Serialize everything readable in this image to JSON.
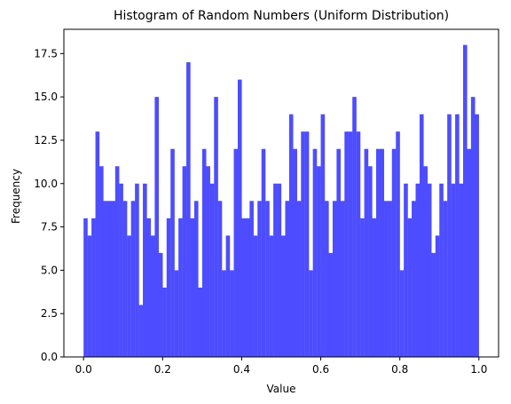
{
  "chart_data": {
    "type": "bar",
    "title": "Histogram of Random Numbers (Uniform Distribution)",
    "xlabel": "Value",
    "ylabel": "Frequency",
    "xlim": [
      -0.0498,
      1.0498
    ],
    "ylim": [
      0,
      18.9
    ],
    "xticks": [
      0.0,
      0.2,
      0.4,
      0.6,
      0.8,
      1.0
    ],
    "xtick_labels": [
      "0.0",
      "0.2",
      "0.4",
      "0.6",
      "0.8",
      "1.0"
    ],
    "yticks": [
      0.0,
      2.5,
      5.0,
      7.5,
      10.0,
      12.5,
      15.0,
      17.5
    ],
    "ytick_labels": [
      "0.0",
      "2.5",
      "5.0",
      "7.5",
      "10.0",
      "12.5",
      "15.0",
      "17.5"
    ],
    "bin_range": [
      0.0,
      1.0
    ],
    "bins": 100,
    "values": [
      8,
      7,
      8,
      13,
      11,
      9,
      9,
      9,
      11,
      10,
      9,
      7,
      9,
      10,
      3,
      10,
      8,
      7,
      15,
      6,
      4,
      8,
      12,
      5,
      8,
      11,
      17,
      8,
      9,
      4,
      12,
      11,
      10,
      15,
      9,
      5,
      7,
      5,
      12,
      16,
      8,
      8,
      9,
      7,
      9,
      12,
      9,
      7,
      10,
      10,
      7,
      9,
      14,
      12,
      9,
      13,
      13,
      5,
      12,
      11,
      14,
      9,
      6,
      9,
      12,
      9,
      13,
      13,
      15,
      13,
      8,
      12,
      11,
      8,
      12,
      12,
      9,
      9,
      12,
      13,
      5,
      10,
      8,
      9,
      10,
      14,
      11,
      10,
      6,
      7,
      10,
      9,
      14,
      10,
      14,
      10,
      18,
      12,
      15,
      14
    ],
    "bar_color": "#4d4dff",
    "grid": false,
    "legend": "none"
  }
}
